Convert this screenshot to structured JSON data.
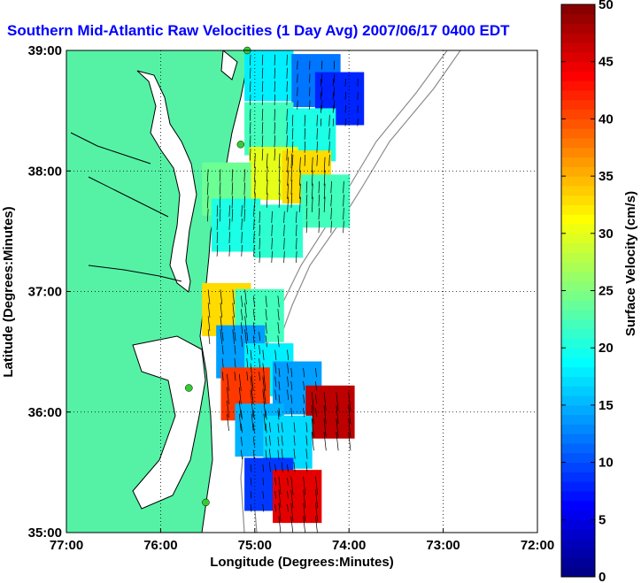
{
  "chart_data": {
    "type": "heatmap",
    "title": "Southern Mid-Atlantic Raw Velocities (1 Day Avg) 2007/06/17 0400 EDT",
    "xlabel": "Longitude (Degrees:Minutes)",
    "ylabel": "Latitude (Degrees:Minutes)",
    "x_ticks": [
      "77:00",
      "76:00",
      "75:00",
      "74:00",
      "73:00",
      "72:00"
    ],
    "y_ticks": [
      "39:00",
      "38:00",
      "37:00",
      "36:00",
      "35:00"
    ],
    "xlim": [
      -77,
      -72
    ],
    "ylim": [
      35,
      39
    ],
    "grid": true,
    "colorbar": {
      "label": "Surface Velocity (cm/s)",
      "range": [
        0,
        50
      ],
      "ticks": [
        "0",
        "5",
        "10",
        "15",
        "20",
        "25",
        "30",
        "35",
        "40",
        "45",
        "50"
      ],
      "colormap": "jet"
    },
    "regions": [
      {
        "lon": -74.85,
        "lat": 38.8,
        "speed": 18
      },
      {
        "lon": -74.35,
        "lat": 38.75,
        "speed": 12
      },
      {
        "lon": -74.1,
        "lat": 38.6,
        "speed": 8
      },
      {
        "lon": -74.85,
        "lat": 38.35,
        "speed": 22
      },
      {
        "lon": -74.4,
        "lat": 38.3,
        "speed": 20
      },
      {
        "lon": -74.8,
        "lat": 37.98,
        "speed": 30
      },
      {
        "lon": -74.45,
        "lat": 37.95,
        "speed": 33
      },
      {
        "lon": -75.3,
        "lat": 37.85,
        "speed": 24
      },
      {
        "lon": -74.25,
        "lat": 37.75,
        "speed": 22
      },
      {
        "lon": -75.2,
        "lat": 37.55,
        "speed": 20
      },
      {
        "lon": -74.75,
        "lat": 37.5,
        "speed": 21
      },
      {
        "lon": -75.3,
        "lat": 36.85,
        "speed": 33
      },
      {
        "lon": -74.95,
        "lat": 36.8,
        "speed": 22
      },
      {
        "lon": -75.15,
        "lat": 36.5,
        "speed": 14
      },
      {
        "lon": -74.85,
        "lat": 36.35,
        "speed": 18
      },
      {
        "lon": -75.1,
        "lat": 36.15,
        "speed": 41
      },
      {
        "lon": -74.55,
        "lat": 36.2,
        "speed": 14
      },
      {
        "lon": -74.2,
        "lat": 36.0,
        "speed": 47
      },
      {
        "lon": -74.95,
        "lat": 35.85,
        "speed": 15
      },
      {
        "lon": -74.65,
        "lat": 35.75,
        "speed": 17
      },
      {
        "lon": -74.85,
        "lat": 35.4,
        "speed": 9
      },
      {
        "lon": -74.55,
        "lat": 35.3,
        "speed": 45
      }
    ],
    "sites": [
      {
        "lon": -75.08,
        "lat": 39.0
      },
      {
        "lon": -75.15,
        "lat": 38.22
      },
      {
        "lon": -75.7,
        "lat": 36.2
      },
      {
        "lon": -75.52,
        "lat": 35.25
      }
    ],
    "colors": {
      "land": "#55f2a6",
      "coast": "#000000",
      "title": "#0000ff",
      "bathymetry": "#8c8c8c",
      "grid": "#000000"
    }
  }
}
